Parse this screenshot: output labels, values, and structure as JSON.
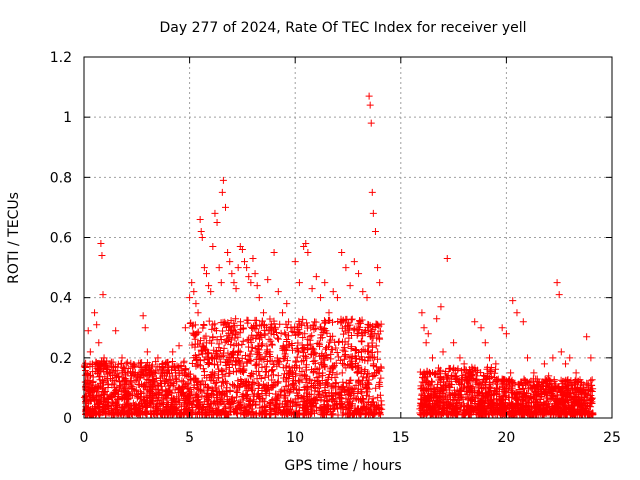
{
  "chart_data": {
    "type": "scatter",
    "title": "Day 277 of 2024, Rate Of TEC Index for receiver yell",
    "xlabel": "GPS time / hours",
    "ylabel": "ROTI / TECUs",
    "xlim": [
      0,
      25
    ],
    "ylim": [
      0,
      1.2
    ],
    "xticks": [
      "0",
      "5",
      "10",
      "15",
      "20",
      "25"
    ],
    "yticks": [
      "0",
      "0.2",
      "0.4",
      "0.6",
      "0.8",
      "1",
      "1.2"
    ],
    "grid": true,
    "marker": "+",
    "marker_color": "#ff0000",
    "series": [
      {
        "name": "ROTI",
        "x": [
          0.1,
          0.2,
          0.3,
          0.4,
          0.5,
          0.6,
          0.7,
          0.8,
          0.85,
          0.9,
          0.95,
          1.0,
          1.2,
          1.5,
          1.8,
          2.0,
          2.3,
          2.6,
          2.8,
          2.9,
          3.0,
          3.2,
          3.5,
          3.8,
          4.0,
          4.2,
          4.5,
          4.8,
          5.0,
          5.1,
          5.2,
          5.3,
          5.4,
          5.5,
          5.55,
          5.6,
          5.7,
          5.8,
          5.9,
          6.0,
          6.1,
          6.2,
          6.3,
          6.4,
          6.5,
          6.55,
          6.6,
          6.7,
          6.8,
          6.9,
          7.0,
          7.1,
          7.2,
          7.3,
          7.4,
          7.5,
          7.6,
          7.7,
          7.8,
          7.9,
          8.0,
          8.1,
          8.2,
          8.3,
          8.5,
          8.7,
          8.9,
          9.0,
          9.2,
          9.4,
          9.6,
          9.8,
          10.0,
          10.2,
          10.4,
          10.5,
          10.6,
          10.8,
          11.0,
          11.2,
          11.4,
          11.6,
          11.8,
          12.0,
          12.2,
          12.4,
          12.6,
          12.8,
          13.0,
          13.2,
          13.4,
          13.5,
          13.55,
          13.6,
          13.65,
          13.7,
          13.8,
          13.9,
          14.0,
          16.0,
          16.1,
          16.2,
          16.3,
          16.5,
          16.7,
          16.9,
          17.0,
          17.2,
          17.5,
          17.8,
          18.0,
          18.3,
          18.5,
          18.8,
          19.0,
          19.2,
          19.5,
          19.8,
          20.0,
          20.2,
          20.3,
          20.5,
          20.8,
          21.0,
          21.3,
          21.5,
          21.8,
          22.0,
          22.2,
          22.4,
          22.5,
          22.6,
          22.8,
          23.0,
          23.3,
          23.5,
          23.8,
          24.0
        ],
        "y": [
          0.12,
          0.29,
          0.22,
          0.18,
          0.35,
          0.31,
          0.25,
          0.58,
          0.54,
          0.41,
          0.2,
          0.18,
          0.15,
          0.29,
          0.2,
          0.18,
          0.17,
          0.15,
          0.34,
          0.3,
          0.22,
          0.17,
          0.2,
          0.15,
          0.16,
          0.22,
          0.24,
          0.3,
          0.4,
          0.45,
          0.42,
          0.38,
          0.35,
          0.66,
          0.62,
          0.6,
          0.5,
          0.48,
          0.44,
          0.42,
          0.57,
          0.68,
          0.65,
          0.5,
          0.45,
          0.75,
          0.79,
          0.7,
          0.55,
          0.52,
          0.48,
          0.45,
          0.43,
          0.5,
          0.57,
          0.56,
          0.52,
          0.5,
          0.47,
          0.45,
          0.53,
          0.48,
          0.44,
          0.4,
          0.35,
          0.46,
          0.3,
          0.55,
          0.42,
          0.35,
          0.38,
          0.3,
          0.52,
          0.45,
          0.57,
          0.58,
          0.55,
          0.43,
          0.47,
          0.4,
          0.45,
          0.35,
          0.42,
          0.4,
          0.55,
          0.5,
          0.44,
          0.52,
          0.48,
          0.42,
          0.4,
          1.07,
          1.04,
          0.98,
          0.75,
          0.68,
          0.62,
          0.5,
          0.45,
          0.35,
          0.3,
          0.25,
          0.28,
          0.2,
          0.33,
          0.37,
          0.22,
          0.53,
          0.25,
          0.2,
          0.18,
          0.15,
          0.32,
          0.3,
          0.25,
          0.2,
          0.18,
          0.3,
          0.28,
          0.15,
          0.39,
          0.35,
          0.32,
          0.2,
          0.15,
          0.12,
          0.18,
          0.14,
          0.2,
          0.45,
          0.41,
          0.22,
          0.18,
          0.2,
          0.15,
          0.1,
          0.27,
          0.2
        ]
      }
    ]
  }
}
